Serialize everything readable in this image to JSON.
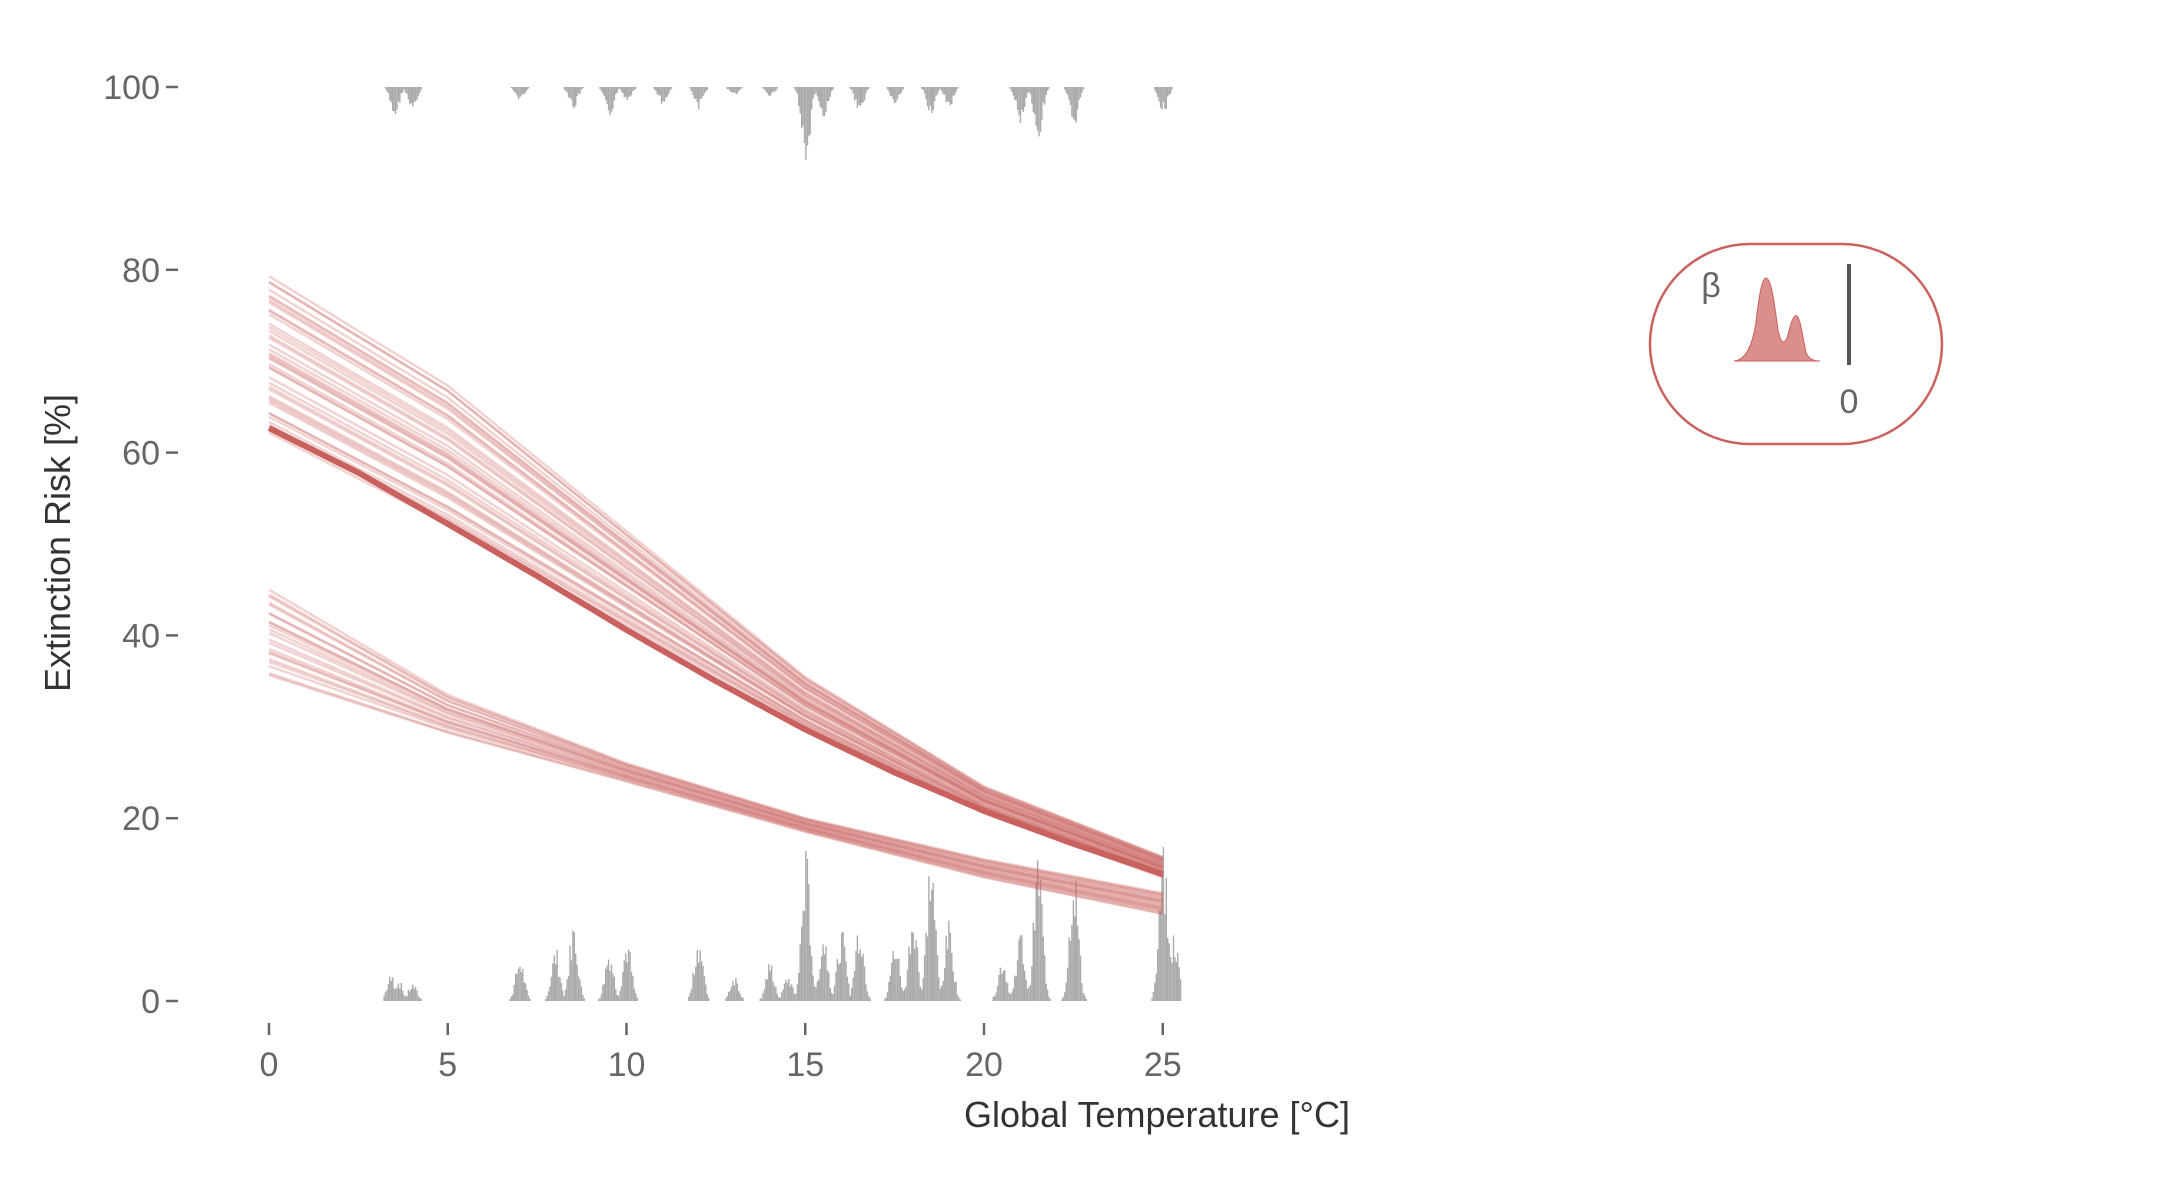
{
  "chart_data": {
    "type": "line",
    "title": "",
    "xlabel": "Global Temperature [°C]",
    "ylabel": "Extinction Risk [%]",
    "xlim": [
      -1.2,
      25.6
    ],
    "ylim": [
      -4,
      103
    ],
    "xticks": [
      0,
      5,
      10,
      15,
      20,
      25
    ],
    "yticks": [
      0,
      20,
      40,
      60,
      80,
      100
    ],
    "grid": false,
    "colors": {
      "curve": "#C9615E",
      "histogram": "#AAAAAA",
      "axis": "#666666"
    },
    "main_curve": {
      "x": [
        0,
        2.5,
        5,
        7.5,
        10,
        12.5,
        15,
        17.5,
        20,
        22.5,
        25
      ],
      "y": [
        62.7,
        57.8,
        52.2,
        46.5,
        40.6,
        35.0,
        29.7,
        25.0,
        20.8,
        17.2,
        13.9
      ]
    },
    "upper_band": {
      "x": [
        0,
        5,
        10,
        15,
        20,
        25
      ],
      "y_low": [
        62,
        52,
        41,
        30,
        20.5,
        13.5
      ],
      "y_high": [
        79.5,
        67.5,
        51.5,
        35.5,
        23.5,
        15.8
      ]
    },
    "lower_band": {
      "x": [
        0,
        5,
        10,
        15,
        20,
        25
      ],
      "y_low": [
        35.5,
        29.3,
        24.0,
        18.5,
        13.5,
        9.5
      ],
      "y_high": [
        45.0,
        33.5,
        26.0,
        20.0,
        15.5,
        11.8
      ]
    },
    "histogram_bottom": [
      {
        "x": 3.4,
        "y": 3
      },
      {
        "x": 3.6,
        "y": 2.5
      },
      {
        "x": 4.0,
        "y": 2
      },
      {
        "x": 7.0,
        "y": 5
      },
      {
        "x": 8.0,
        "y": 6
      },
      {
        "x": 8.5,
        "y": 9
      },
      {
        "x": 9.5,
        "y": 6
      },
      {
        "x": 10.0,
        "y": 7
      },
      {
        "x": 12.0,
        "y": 7.5
      },
      {
        "x": 13.0,
        "y": 3
      },
      {
        "x": 14.0,
        "y": 4.5
      },
      {
        "x": 14.5,
        "y": 3
      },
      {
        "x": 15.0,
        "y": 17
      },
      {
        "x": 15.5,
        "y": 8
      },
      {
        "x": 16.0,
        "y": 8
      },
      {
        "x": 16.5,
        "y": 9.5
      },
      {
        "x": 17.5,
        "y": 7
      },
      {
        "x": 18.0,
        "y": 11
      },
      {
        "x": 18.5,
        "y": 17
      },
      {
        "x": 19.0,
        "y": 9
      },
      {
        "x": 20.5,
        "y": 5
      },
      {
        "x": 21.0,
        "y": 8
      },
      {
        "x": 21.5,
        "y": 17
      },
      {
        "x": 22.5,
        "y": 16
      },
      {
        "x": 25.0,
        "y": 17
      },
      {
        "x": 25.3,
        "y": 8
      }
    ],
    "histogram_top": [
      {
        "x": 3.5,
        "y": 3.5
      },
      {
        "x": 4.0,
        "y": 3
      },
      {
        "x": 7.0,
        "y": 1.5
      },
      {
        "x": 8.5,
        "y": 2.5
      },
      {
        "x": 9.5,
        "y": 3.5
      },
      {
        "x": 10.0,
        "y": 1.5
      },
      {
        "x": 11.0,
        "y": 2
      },
      {
        "x": 12.0,
        "y": 2.5
      },
      {
        "x": 13.0,
        "y": 1
      },
      {
        "x": 14.0,
        "y": 1
      },
      {
        "x": 15.0,
        "y": 9
      },
      {
        "x": 15.5,
        "y": 4
      },
      {
        "x": 16.5,
        "y": 3
      },
      {
        "x": 17.5,
        "y": 2
      },
      {
        "x": 18.5,
        "y": 3
      },
      {
        "x": 19.0,
        "y": 2.5
      },
      {
        "x": 21.0,
        "y": 4
      },
      {
        "x": 21.5,
        "y": 6
      },
      {
        "x": 22.5,
        "y": 4.5
      },
      {
        "x": 25.0,
        "y": 3
      }
    ],
    "inset": {
      "symbol": "β",
      "zero_label": "0",
      "density_description_peaks": [
        0.55,
        0.28
      ]
    }
  }
}
